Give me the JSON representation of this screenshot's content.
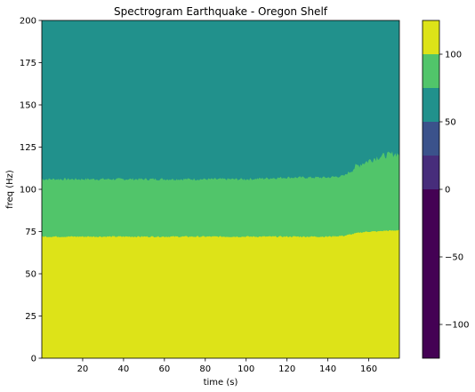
{
  "chart_data": {
    "type": "heatmap",
    "title": "Spectrogram Earthquake - Oregon Shelf",
    "xlabel": "time (s)",
    "ylabel": "freq (Hz)",
    "xlim": [
      0,
      175
    ],
    "ylim": [
      0,
      200
    ],
    "x_ticks": [
      20,
      40,
      60,
      80,
      100,
      120,
      140,
      160
    ],
    "y_ticks": [
      0,
      25,
      50,
      75,
      100,
      125,
      150,
      175,
      200
    ],
    "colorbar": {
      "range": [
        -125,
        125
      ],
      "ticks": [
        -100,
        -50,
        0,
        50,
        100
      ],
      "levels": [
        {
          "from": -125,
          "to": 0,
          "color": "#440154"
        },
        {
          "from": 0,
          "to": 25,
          "color": "#472d7b"
        },
        {
          "from": 25,
          "to": 50,
          "color": "#3b528b"
        },
        {
          "from": 50,
          "to": 75,
          "color": "#21918c"
        },
        {
          "from": 75,
          "to": 100,
          "color": "#51c56a"
        },
        {
          "from": 100,
          "to": 125,
          "color": "#dde318"
        }
      ]
    },
    "regions": [
      {
        "band": "low",
        "level_color": "#dde318",
        "description_value": "100-125"
      },
      {
        "band": "mid",
        "level_color": "#51c56a",
        "description_value": "75-100"
      },
      {
        "band": "high",
        "level_color": "#21918c",
        "description_value": "50-75"
      }
    ],
    "boundaries": {
      "time": [
        0,
        20,
        40,
        60,
        80,
        100,
        120,
        140,
        148,
        152,
        156,
        160,
        164,
        168,
        172,
        175
      ],
      "lower_freq": [
        72,
        72,
        72,
        72,
        72,
        72,
        72,
        72,
        72.5,
        73.5,
        74.5,
        75,
        75,
        75.5,
        75.5,
        76
      ],
      "upper_freq": [
        106,
        106,
        106,
        106,
        106,
        106,
        107,
        107,
        108,
        112,
        115,
        117,
        119,
        120,
        121,
        121
      ]
    }
  }
}
